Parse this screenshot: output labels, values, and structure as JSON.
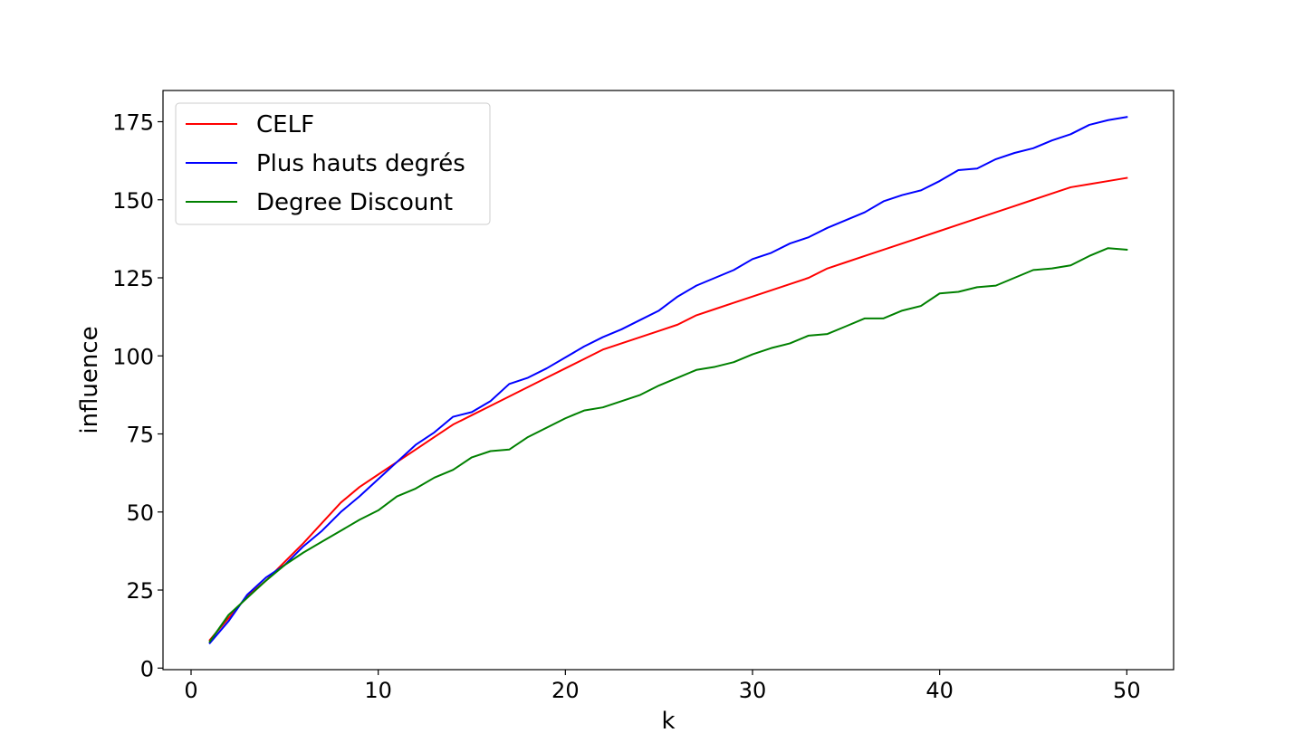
{
  "chart_data": {
    "type": "line",
    "title": "",
    "xlabel": "k",
    "ylabel": "influence",
    "xlim": [
      -1.5,
      52.5
    ],
    "ylim": [
      -0.5,
      185
    ],
    "xticks": [
      0,
      10,
      20,
      30,
      40,
      50
    ],
    "yticks": [
      0,
      25,
      50,
      75,
      100,
      125,
      150,
      175
    ],
    "grid": false,
    "legend_position": "top-left",
    "x": [
      1,
      2,
      3,
      4,
      5,
      6,
      7,
      8,
      9,
      10,
      11,
      12,
      13,
      14,
      15,
      16,
      17,
      18,
      19,
      20,
      21,
      22,
      23,
      24,
      25,
      26,
      27,
      28,
      29,
      30,
      31,
      32,
      33,
      34,
      35,
      36,
      37,
      38,
      39,
      40,
      41,
      42,
      43,
      44,
      45,
      46,
      47,
      48,
      49,
      50
    ],
    "series": [
      {
        "name": "CELF",
        "color": "#ff0000",
        "values": [
          9,
          16,
          23,
          28,
          34,
          40,
          46.5,
          53,
          58,
          62,
          66,
          70,
          74,
          78,
          81,
          84,
          87,
          90,
          93,
          96,
          99,
          102,
          104,
          106,
          108,
          110,
          113,
          115,
          117,
          119,
          121,
          123,
          125,
          128,
          130,
          132,
          134,
          136,
          138,
          140,
          142,
          144,
          146,
          148,
          150,
          152,
          154,
          155,
          156,
          157
        ]
      },
      {
        "name": "Plus hauts degrés",
        "color": "#0000ff",
        "values": [
          8,
          15,
          23.5,
          29,
          33,
          39,
          44,
          50,
          55,
          60.5,
          66,
          71.5,
          75.5,
          80.5,
          82,
          85.5,
          91,
          93,
          96,
          99.5,
          103,
          106,
          108.5,
          111.5,
          114.5,
          119,
          122.5,
          125,
          127.5,
          131,
          133,
          136,
          138,
          141,
          143.5,
          146,
          149.5,
          151.5,
          153,
          156,
          159.5,
          160,
          163,
          165,
          166.5,
          169,
          171,
          174,
          175.5,
          176.5
        ]
      },
      {
        "name": "Degree Discount",
        "color": "#008000",
        "values": [
          8.5,
          17,
          22.5,
          28,
          33,
          37,
          40.5,
          44,
          47.5,
          50.5,
          55,
          57.5,
          61,
          63.5,
          67.5,
          69.5,
          70,
          74,
          77,
          80,
          82.5,
          83.5,
          85.5,
          87.5,
          90.5,
          93,
          95.5,
          96.5,
          98,
          100.5,
          102.5,
          104,
          106.5,
          107,
          109.5,
          112,
          112,
          114.5,
          116,
          120,
          120.5,
          122,
          122.5,
          125,
          127.5,
          128,
          129,
          132,
          134.5,
          134
        ]
      }
    ]
  }
}
